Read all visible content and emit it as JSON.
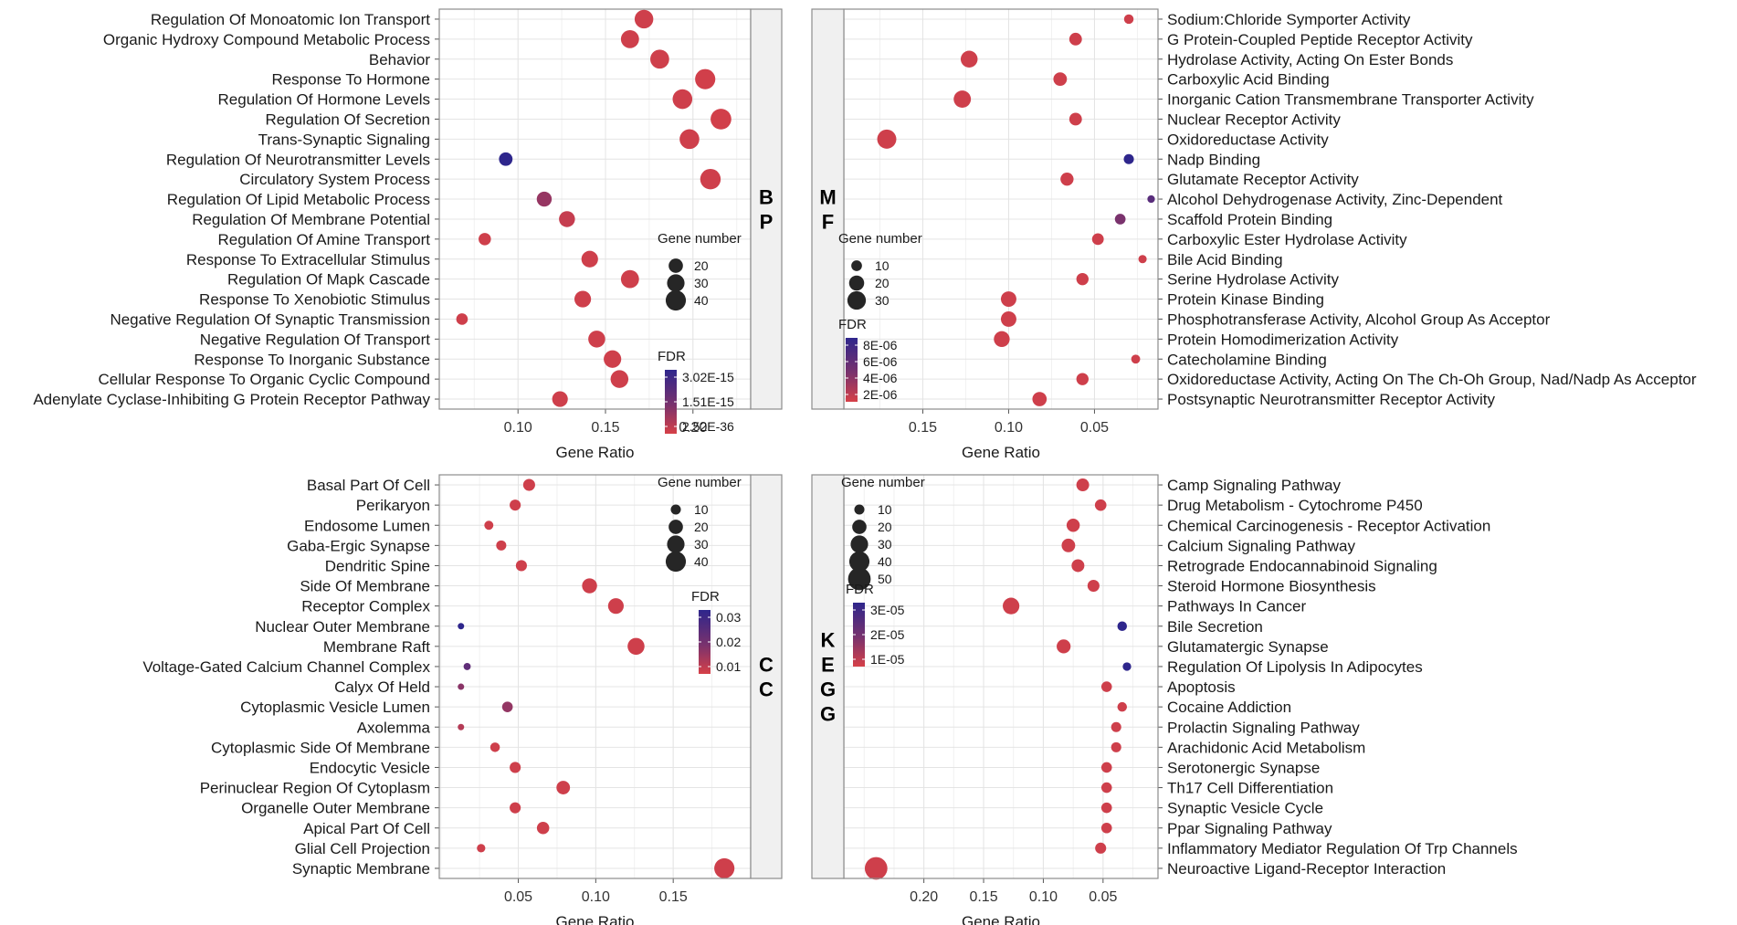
{
  "figure": {
    "xlabel": "Gene Ratio"
  },
  "chart_data": [
    {
      "type": "scatter",
      "id": "bp",
      "facet_label": [
        "B",
        "P"
      ],
      "xlabel": "Gene Ratio",
      "xlim": [
        0.055,
        0.233
      ],
      "x_reversed": false,
      "xticks": [
        0.1,
        0.15,
        0.2
      ],
      "xtick_labels": [
        "0.10",
        "0.15",
        "0.20"
      ],
      "size_legend": {
        "title": "Gene number",
        "values": [
          20,
          30,
          40
        ],
        "labels": [
          "20",
          "30",
          "40"
        ]
      },
      "color_legend": {
        "title": "FDR",
        "labels": [
          "3.02E-15",
          "1.51E-15",
          "2.52E-36"
        ]
      },
      "points": [
        {
          "term": "Regulation Of Monoatomic Ion Transport",
          "gene_ratio": 0.172,
          "count": 34,
          "fdr": 0.05
        },
        {
          "term": "Organic Hydroxy Compound Metabolic Process",
          "gene_ratio": 0.164,
          "count": 32,
          "fdr": 0.05
        },
        {
          "term": "Behavior",
          "gene_ratio": 0.181,
          "count": 35,
          "fdr": 0.05
        },
        {
          "term": "Response To Hormone",
          "gene_ratio": 0.207,
          "count": 40,
          "fdr": 0.03
        },
        {
          "term": "Regulation Of Hormone Levels",
          "gene_ratio": 0.194,
          "count": 38,
          "fdr": 0.05
        },
        {
          "term": "Regulation Of Secretion",
          "gene_ratio": 0.216,
          "count": 42,
          "fdr": 0.03
        },
        {
          "term": "Trans-Synaptic Signaling",
          "gene_ratio": 0.198,
          "count": 38,
          "fdr": 0.05
        },
        {
          "term": "Regulation Of Neurotransmitter Levels",
          "gene_ratio": 0.093,
          "count": 18,
          "fdr": 1.0
        },
        {
          "term": "Circulatory System Process",
          "gene_ratio": 0.21,
          "count": 41,
          "fdr": 0.05
        },
        {
          "term": "Regulation Of Lipid Metabolic Process",
          "gene_ratio": 0.115,
          "count": 22,
          "fdr": 0.38
        },
        {
          "term": "Regulation Of Membrane Potential",
          "gene_ratio": 0.128,
          "count": 25,
          "fdr": 0.1
        },
        {
          "term": "Regulation Of Amine Transport",
          "gene_ratio": 0.081,
          "count": 15,
          "fdr": 0.05
        },
        {
          "term": "Response To Extracellular Stimulus",
          "gene_ratio": 0.141,
          "count": 27,
          "fdr": 0.05
        },
        {
          "term": "Regulation Of Mapk Cascade",
          "gene_ratio": 0.164,
          "count": 32,
          "fdr": 0.05
        },
        {
          "term": "Response To Xenobiotic Stimulus",
          "gene_ratio": 0.137,
          "count": 27,
          "fdr": 0.05
        },
        {
          "term": "Negative Regulation Of Synaptic Transmission",
          "gene_ratio": 0.068,
          "count": 13,
          "fdr": 0.05
        },
        {
          "term": "Negative Regulation Of Transport",
          "gene_ratio": 0.145,
          "count": 28,
          "fdr": 0.05
        },
        {
          "term": "Response To Inorganic Substance",
          "gene_ratio": 0.154,
          "count": 30,
          "fdr": 0.05
        },
        {
          "term": "Cellular Response To Organic Cyclic Compound",
          "gene_ratio": 0.158,
          "count": 31,
          "fdr": 0.05
        },
        {
          "term": "Adenylate Cyclase-Inhibiting G Protein Receptor Pathway",
          "gene_ratio": 0.124,
          "count": 24,
          "fdr": 0.05
        }
      ]
    },
    {
      "type": "scatter",
      "id": "mf",
      "facet_label": [
        "M",
        "F"
      ],
      "xlabel": "Gene Ratio",
      "xlim": [
        0.196,
        0.013
      ],
      "x_reversed": true,
      "xticks": [
        0.15,
        0.1,
        0.05
      ],
      "xtick_labels": [
        "0.15",
        "0.10",
        "0.05"
      ],
      "size_legend": {
        "title": "Gene number",
        "values": [
          10,
          20,
          30
        ],
        "labels": [
          "10",
          "20",
          "30"
        ]
      },
      "color_legend": {
        "title": "FDR",
        "labels": [
          "8E-06",
          "6E-06",
          "4E-06",
          "2E-06"
        ]
      },
      "points": [
        {
          "term": "Sodium:Chloride Symporter Activity",
          "gene_ratio": 0.03,
          "count": 8,
          "fdr": 0.05
        },
        {
          "term": "G Protein-Coupled Peptide Receptor Activity",
          "gene_ratio": 0.061,
          "count": 14,
          "fdr": 0.05
        },
        {
          "term": "Hydrolase Activity, Acting On Ester Bonds",
          "gene_ratio": 0.123,
          "count": 25,
          "fdr": 0.05
        },
        {
          "term": "Carboxylic Acid Binding",
          "gene_ratio": 0.07,
          "count": 16,
          "fdr": 0.05
        },
        {
          "term": "Inorganic Cation Transmembrane Transporter Activity",
          "gene_ratio": 0.127,
          "count": 26,
          "fdr": 0.05
        },
        {
          "term": "Nuclear Receptor Activity",
          "gene_ratio": 0.061,
          "count": 14,
          "fdr": 0.05
        },
        {
          "term": "Oxidoreductase Activity",
          "gene_ratio": 0.171,
          "count": 32,
          "fdr": 0.05
        },
        {
          "term": "Nadp Binding",
          "gene_ratio": 0.03,
          "count": 9,
          "fdr": 1.0
        },
        {
          "term": "Glutamate Receptor Activity",
          "gene_ratio": 0.066,
          "count": 15,
          "fdr": 0.05
        },
        {
          "term": "Alcohol Dehydrogenase Activity, Zinc-Dependent",
          "gene_ratio": 0.017,
          "count": 5,
          "fdr": 0.75
        },
        {
          "term": "Scaffold Protein Binding",
          "gene_ratio": 0.035,
          "count": 10,
          "fdr": 0.55
        },
        {
          "term": "Carboxylic Ester Hydrolase Activity",
          "gene_ratio": 0.048,
          "count": 12,
          "fdr": 0.05
        },
        {
          "term": "Bile Acid Binding",
          "gene_ratio": 0.022,
          "count": 6,
          "fdr": 0.05
        },
        {
          "term": "Serine Hydrolase Activity",
          "gene_ratio": 0.057,
          "count": 13,
          "fdr": 0.05
        },
        {
          "term": "Protein Kinase Binding",
          "gene_ratio": 0.1,
          "count": 21,
          "fdr": 0.05
        },
        {
          "term": "Phosphotransferase Activity, Alcohol Group As Acceptor",
          "gene_ratio": 0.1,
          "count": 21,
          "fdr": 0.05
        },
        {
          "term": "Protein Homodimerization Activity",
          "gene_ratio": 0.104,
          "count": 22,
          "fdr": 0.05
        },
        {
          "term": "Catecholamine Binding",
          "gene_ratio": 0.026,
          "count": 7,
          "fdr": 0.05
        },
        {
          "term": "Oxidoreductase Activity, Acting On The Ch-Oh Group, Nad/Nadp As Acceptor",
          "gene_ratio": 0.057,
          "count": 13,
          "fdr": 0.05
        },
        {
          "term": "Postsynaptic Neurotransmitter Receptor Activity",
          "gene_ratio": 0.082,
          "count": 18,
          "fdr": 0.05
        }
      ]
    },
    {
      "type": "scatter",
      "id": "cc",
      "facet_label": [
        "C",
        "C"
      ],
      "xlabel": "Gene Ratio",
      "xlim": [
        -0.001,
        0.2
      ],
      "x_reversed": false,
      "xticks": [
        0.05,
        0.1,
        0.15
      ],
      "xtick_labels": [
        "0.05",
        "0.10",
        "0.15"
      ],
      "size_legend": {
        "title": "Gene number",
        "values": [
          10,
          20,
          30,
          40
        ],
        "labels": [
          "10",
          "20",
          "30",
          "40"
        ]
      },
      "color_legend": {
        "title": "FDR",
        "labels": [
          "0.03",
          "0.02",
          "0.01"
        ]
      },
      "points": [
        {
          "term": "Basal Part Of Cell",
          "gene_ratio": 0.057,
          "count": 14,
          "fdr": 0.05
        },
        {
          "term": "Perikaryon",
          "gene_ratio": 0.048,
          "count": 12,
          "fdr": 0.05
        },
        {
          "term": "Endosome Lumen",
          "gene_ratio": 0.031,
          "count": 8,
          "fdr": 0.05
        },
        {
          "term": "Gaba-Ergic Synapse",
          "gene_ratio": 0.039,
          "count": 10,
          "fdr": 0.05
        },
        {
          "term": "Dendritic Spine",
          "gene_ratio": 0.052,
          "count": 12,
          "fdr": 0.05
        },
        {
          "term": "Side Of Membrane",
          "gene_ratio": 0.096,
          "count": 22,
          "fdr": 0.05
        },
        {
          "term": "Receptor Complex",
          "gene_ratio": 0.113,
          "count": 24,
          "fdr": 0.05
        },
        {
          "term": "Nuclear Outer Membrane",
          "gene_ratio": 0.013,
          "count": 4,
          "fdr": 1.0
        },
        {
          "term": "Membrane Raft",
          "gene_ratio": 0.126,
          "count": 28,
          "fdr": 0.05
        },
        {
          "term": "Voltage-Gated Calcium Channel Complex",
          "gene_ratio": 0.017,
          "count": 5,
          "fdr": 0.7
        },
        {
          "term": "Calyx Of Held",
          "gene_ratio": 0.013,
          "count": 4,
          "fdr": 0.45
        },
        {
          "term": "Cytoplasmic Vesicle Lumen",
          "gene_ratio": 0.043,
          "count": 11,
          "fdr": 0.4
        },
        {
          "term": "Axolemma",
          "gene_ratio": 0.013,
          "count": 4,
          "fdr": 0.2
        },
        {
          "term": "Cytoplasmic Side Of Membrane",
          "gene_ratio": 0.035,
          "count": 9,
          "fdr": 0.05
        },
        {
          "term": "Endocytic Vesicle",
          "gene_ratio": 0.048,
          "count": 12,
          "fdr": 0.05
        },
        {
          "term": "Perinuclear Region Of Cytoplasm",
          "gene_ratio": 0.079,
          "count": 18,
          "fdr": 0.05
        },
        {
          "term": "Organelle Outer Membrane",
          "gene_ratio": 0.048,
          "count": 12,
          "fdr": 0.05
        },
        {
          "term": "Apical Part Of Cell",
          "gene_ratio": 0.066,
          "count": 15,
          "fdr": 0.05
        },
        {
          "term": "Glial Cell Projection",
          "gene_ratio": 0.026,
          "count": 7,
          "fdr": 0.05
        },
        {
          "term": "Synaptic Membrane",
          "gene_ratio": 0.183,
          "count": 40,
          "fdr": 0.05
        }
      ]
    },
    {
      "type": "scatter",
      "id": "kegg",
      "facet_label": [
        "K",
        "E",
        "G",
        "G"
      ],
      "xlabel": "Gene Ratio",
      "xlim": [
        0.267,
        0.004
      ],
      "x_reversed": true,
      "xticks": [
        0.2,
        0.15,
        0.1,
        0.05
      ],
      "xtick_labels": [
        "0.20",
        "0.15",
        "0.10",
        "0.05"
      ],
      "size_legend": {
        "title": "Gene number",
        "values": [
          10,
          20,
          30,
          40,
          50
        ],
        "labels": [
          "10",
          "20",
          "30",
          "40",
          "50"
        ]
      },
      "color_legend": {
        "title": "FDR",
        "labels": [
          "3E-05",
          "2E-05",
          "1E-05"
        ]
      },
      "points": [
        {
          "term": "Camp Signaling Pathway",
          "gene_ratio": 0.067,
          "count": 16,
          "fdr": 0.05
        },
        {
          "term": "Drug Metabolism - Cytochrome P450",
          "gene_ratio": 0.052,
          "count": 13,
          "fdr": 0.05
        },
        {
          "term": "Chemical Carcinogenesis - Receptor Activation",
          "gene_ratio": 0.075,
          "count": 17,
          "fdr": 0.05
        },
        {
          "term": "Calcium Signaling Pathway",
          "gene_ratio": 0.079,
          "count": 18,
          "fdr": 0.05
        },
        {
          "term": "Retrograde Endocannabinoid Signaling",
          "gene_ratio": 0.071,
          "count": 16,
          "fdr": 0.05
        },
        {
          "term": "Steroid Hormone Biosynthesis",
          "gene_ratio": 0.058,
          "count": 14,
          "fdr": 0.05
        },
        {
          "term": "Pathways In Cancer",
          "gene_ratio": 0.127,
          "count": 27,
          "fdr": 0.05
        },
        {
          "term": "Bile Secretion",
          "gene_ratio": 0.034,
          "count": 9,
          "fdr": 1.0
        },
        {
          "term": "Glutamatergic Synapse",
          "gene_ratio": 0.083,
          "count": 19,
          "fdr": 0.05
        },
        {
          "term": "Regulation Of Lipolysis In Adipocytes",
          "gene_ratio": 0.03,
          "count": 7,
          "fdr": 1.0
        },
        {
          "term": "Apoptosis",
          "gene_ratio": 0.047,
          "count": 11,
          "fdr": 0.05
        },
        {
          "term": "Cocaine Addiction",
          "gene_ratio": 0.034,
          "count": 9,
          "fdr": 0.05
        },
        {
          "term": "Prolactin Signaling Pathway",
          "gene_ratio": 0.039,
          "count": 10,
          "fdr": 0.05
        },
        {
          "term": "Arachidonic Acid Metabolism",
          "gene_ratio": 0.039,
          "count": 10,
          "fdr": 0.05
        },
        {
          "term": "Serotonergic Synapse",
          "gene_ratio": 0.047,
          "count": 11,
          "fdr": 0.05
        },
        {
          "term": "Th17 Cell Differentiation",
          "gene_ratio": 0.047,
          "count": 11,
          "fdr": 0.05
        },
        {
          "term": "Synaptic Vesicle Cycle",
          "gene_ratio": 0.047,
          "count": 11,
          "fdr": 0.05
        },
        {
          "term": "Ppar Signaling Pathway",
          "gene_ratio": 0.047,
          "count": 11,
          "fdr": 0.05
        },
        {
          "term": "Inflammatory Mediator Regulation Of Trp Channels",
          "gene_ratio": 0.052,
          "count": 12,
          "fdr": 0.05
        },
        {
          "term": "Neuroactive Ligand-Receptor Interaction",
          "gene_ratio": 0.24,
          "count": 50,
          "fdr": 0.05
        }
      ]
    }
  ]
}
